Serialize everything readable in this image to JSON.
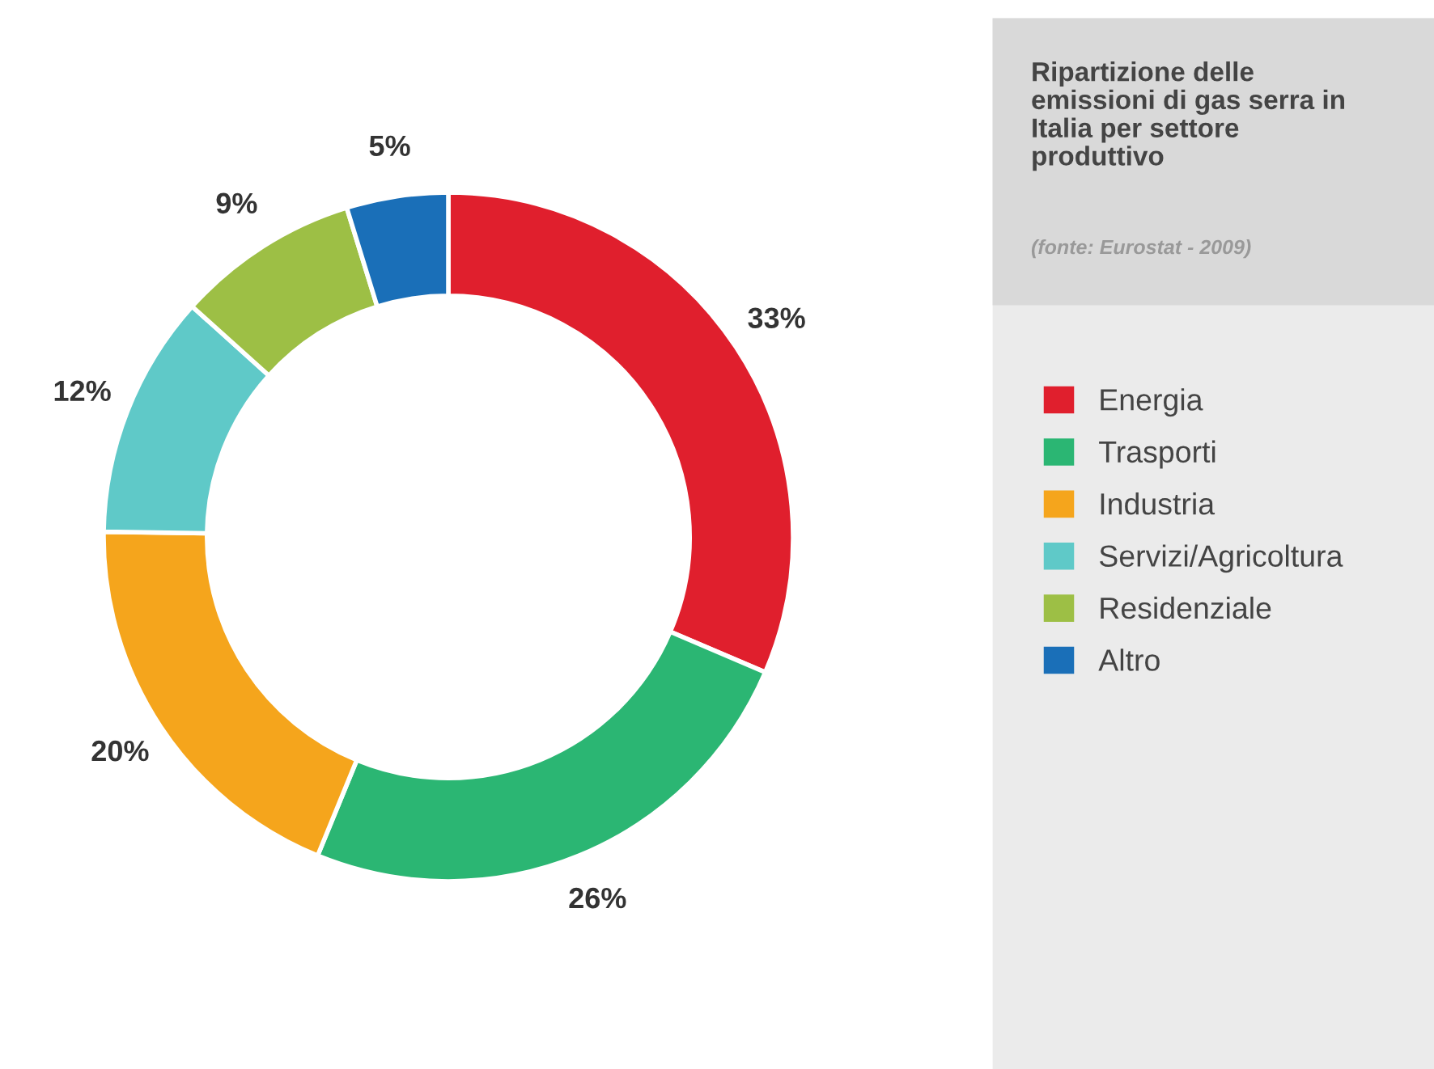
{
  "chart_data": {
    "type": "donut",
    "title": "Ripartizione delle emissioni di gas serra in Italia per settore produttivo",
    "annotations": [
      "(fonte: Eurostat - 2009)"
    ],
    "categories": [
      "Energia",
      "Trasporti",
      "Industria",
      "Servizi/Agricoltura",
      "Residenziale",
      "Altro"
    ],
    "values": [
      33,
      26,
      20,
      12,
      9,
      5
    ],
    "colors": [
      "#e01f2d",
      "#2bb673",
      "#f5a51c",
      "#5fc9c8",
      "#9dbf45",
      "#1a6fb8"
    ],
    "value_labels": [
      "33%",
      "26%",
      "20%",
      "12%",
      "9%",
      "5%"
    ],
    "legend": "right"
  }
}
